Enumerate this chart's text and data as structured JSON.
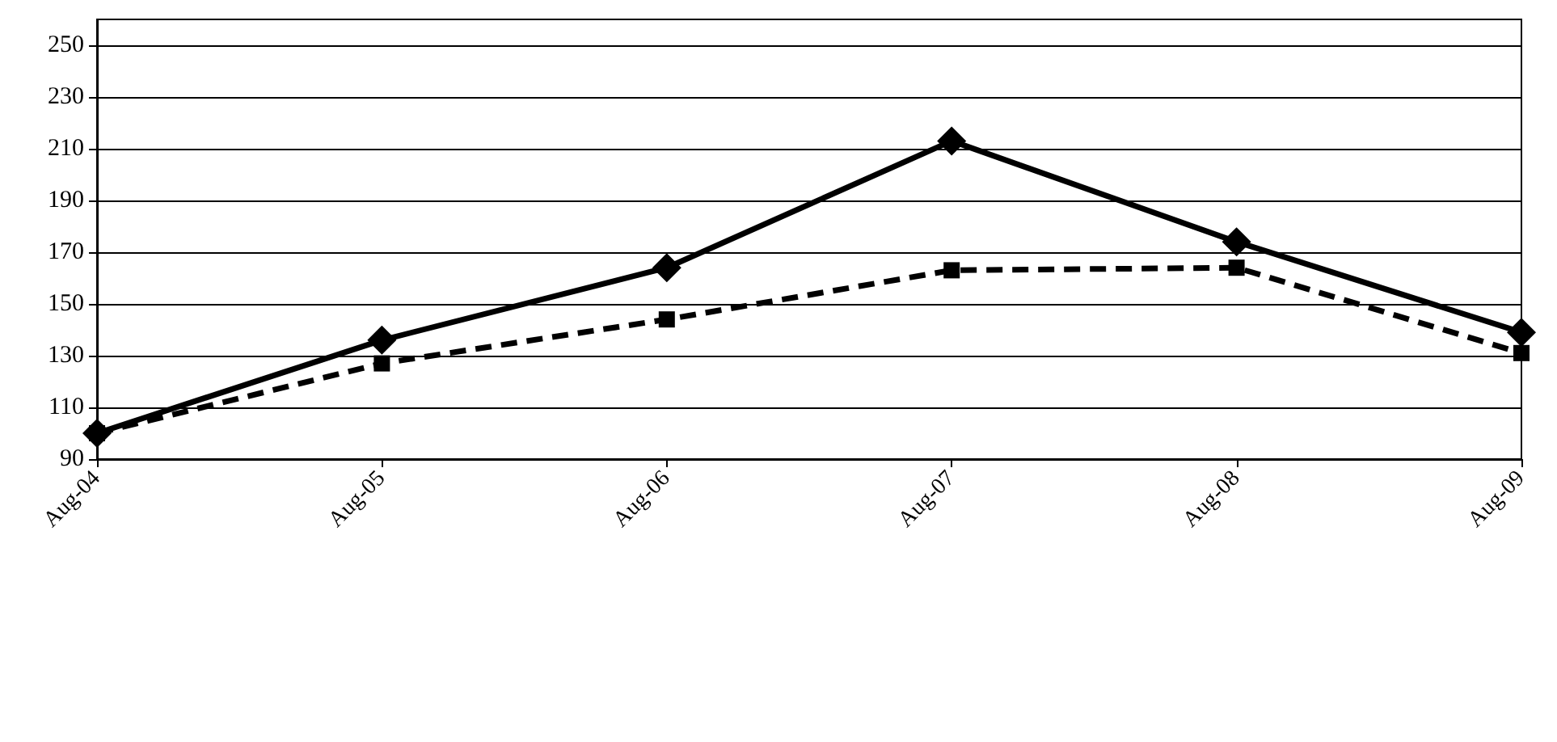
{
  "chart_data": {
    "type": "line",
    "categories": [
      "Aug-04",
      "Aug-05",
      "Aug-06",
      "Aug-07",
      "Aug-08",
      "Aug-09"
    ],
    "series": [
      {
        "color": "#000000",
        "values": [
          100,
          136,
          164,
          213,
          174,
          139
        ],
        "marker": "diamond",
        "line_style": "solid"
      },
      {
        "color": "#000000",
        "values": [
          100,
          127,
          144,
          163,
          164,
          131
        ],
        "marker": "square",
        "line_style": "dashed"
      }
    ],
    "ylim": [
      90,
      260
    ],
    "yticks": [
      90,
      110,
      130,
      150,
      170,
      190,
      210,
      230,
      250
    ],
    "grid": "y"
  }
}
